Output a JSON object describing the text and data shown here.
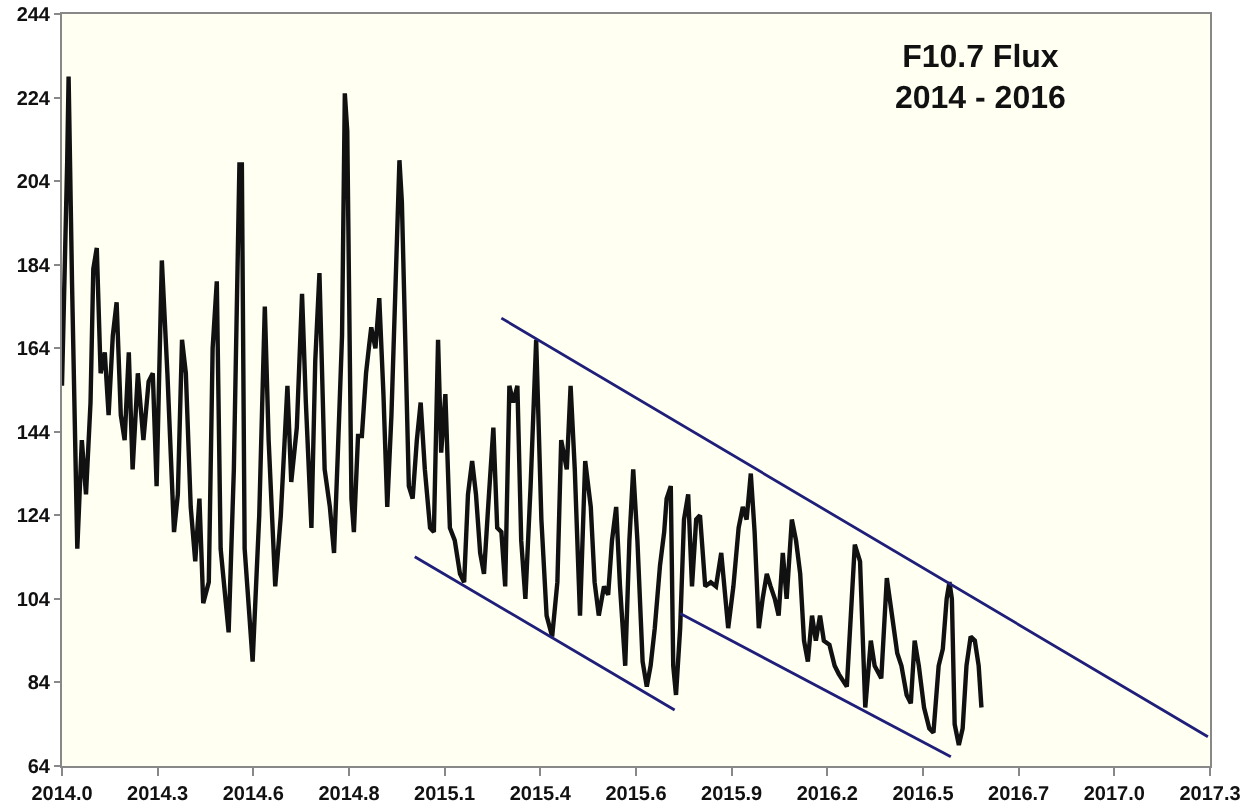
{
  "chart_data": {
    "type": "line",
    "title": "F10.7 Flux\n2014 - 2016",
    "xlim": [
      2014,
      2017.3
    ],
    "xticks": [
      {
        "value": 2014,
        "label": "2014.0"
      },
      {
        "value": 2014.275,
        "label": "2014.3"
      },
      {
        "value": 2014.55,
        "label": "2014.6"
      },
      {
        "value": 2014.825,
        "label": "2014.8"
      },
      {
        "value": 2015.1,
        "label": "2015.1"
      },
      {
        "value": 2015.375,
        "label": "2015.4"
      },
      {
        "value": 2015.65,
        "label": "2015.6"
      },
      {
        "value": 2015.925,
        "label": "2015.9"
      },
      {
        "value": 2016.2,
        "label": "2016.2"
      },
      {
        "value": 2016.475,
        "label": "2016.5"
      },
      {
        "value": 2016.75,
        "label": "2016.7"
      },
      {
        "value": 2017.025,
        "label": "2017.0"
      },
      {
        "value": 2017.3,
        "label": "2017.3"
      }
    ],
    "ylim": [
      64,
      244
    ],
    "yticks": [
      64,
      84,
      104,
      124,
      144,
      164,
      184,
      204,
      224,
      244
    ],
    "grid": false,
    "series": [
      {
        "color": "#111111",
        "x": [
          2014.0,
          2014.015,
          2014.019,
          2014.029,
          2014.044,
          2014.057,
          2014.069,
          2014.082,
          2014.09,
          2014.1,
          2014.111,
          2014.123,
          2014.134,
          2014.146,
          2014.157,
          2014.169,
          2014.18,
          2014.192,
          2014.203,
          2014.218,
          2014.234,
          2014.249,
          2014.261,
          2014.272,
          2014.287,
          2014.303,
          2014.322,
          2014.333,
          2014.345,
          2014.356,
          2014.37,
          2014.383,
          2014.395,
          2014.406,
          2014.422,
          2014.433,
          2014.445,
          2014.456,
          2014.479,
          2014.494,
          2014.51,
          2014.517,
          2014.525,
          2014.548,
          2014.567,
          2014.583,
          2014.594,
          2014.613,
          2014.629,
          2014.648,
          2014.659,
          2014.675,
          2014.69,
          2014.701,
          2014.717,
          2014.728,
          2014.74,
          2014.755,
          2014.77,
          2014.782,
          2014.793,
          2014.805,
          2014.813,
          2014.82,
          2014.832,
          2014.839,
          2014.851,
          2014.862,
          2014.874,
          2014.882,
          2014.889,
          2014.901,
          2014.912,
          2014.924,
          2014.935,
          2014.947,
          2014.958,
          2014.97,
          2014.977,
          2014.997,
          2015.008,
          2015.02,
          2015.031,
          2015.043,
          2015.058,
          2015.069,
          2015.081,
          2015.09,
          2015.102,
          2015.115,
          2015.129,
          2015.144,
          2015.156,
          2015.167,
          2015.179,
          2015.19,
          2015.202,
          2015.213,
          2015.225,
          2015.24,
          2015.251,
          2015.263,
          2015.274,
          2015.286,
          2015.297,
          2015.309,
          2015.32,
          2015.332,
          2015.347,
          2015.363,
          2015.378,
          2015.393,
          2015.409,
          2015.424,
          2015.435,
          2015.451,
          2015.462,
          2015.474,
          2015.489,
          2015.504,
          2015.52,
          2015.531,
          2015.543,
          2015.558,
          2015.57,
          2015.581,
          2015.593,
          2015.604,
          2015.619,
          2015.631,
          2015.642,
          2015.654,
          2015.669,
          2015.681,
          2015.692,
          2015.704,
          2015.719,
          2015.731,
          2015.738,
          2015.75,
          2015.757,
          2015.765,
          2015.777,
          2015.788,
          2015.8,
          2015.811,
          2015.823,
          2015.834,
          2015.849,
          2015.865,
          2015.88,
          2015.895,
          2015.915,
          2015.93,
          2015.945,
          2015.957,
          2015.968,
          2015.98,
          2015.991,
          2016.003,
          2016.014,
          2016.026,
          2016.037,
          2016.049,
          2016.06,
          2016.072,
          2016.083,
          2016.098,
          2016.11,
          2016.122,
          2016.133,
          2016.144,
          2016.156,
          2016.167,
          2016.179,
          2016.19,
          2016.206,
          2016.221,
          2016.233,
          2016.256,
          2016.279,
          2016.294,
          2016.309,
          2016.325,
          2016.336,
          2016.355,
          2016.371,
          2016.386,
          2016.401,
          2016.413,
          2016.428,
          2016.44,
          2016.451,
          2016.463,
          2016.478,
          2016.493,
          2016.505,
          2016.52,
          2016.532,
          2016.543,
          2016.551,
          2016.558,
          2016.566,
          2016.578,
          2016.589,
          2016.6,
          2016.612,
          2016.624,
          2016.635,
          2016.643
        ],
        "values": [
          155,
          209,
          229,
          179,
          116,
          142,
          129,
          151,
          183,
          188,
          158,
          163,
          148,
          167,
          175,
          148,
          142,
          163,
          135,
          158,
          142,
          156,
          158,
          131,
          185,
          158,
          120,
          129,
          166,
          158,
          126,
          113,
          128,
          103,
          108,
          164,
          180,
          116,
          96,
          135,
          208,
          208,
          116,
          89,
          124,
          174,
          142,
          107,
          124,
          155,
          132,
          145,
          177,
          151,
          121,
          161,
          182,
          135,
          126,
          115,
          139,
          167,
          225,
          216,
          128,
          120,
          143,
          143,
          158,
          164,
          169,
          164,
          176,
          153,
          126,
          148,
          177,
          209,
          199,
          131,
          128,
          142,
          151,
          135,
          121,
          120,
          166,
          139,
          153,
          121,
          118,
          110,
          108,
          129,
          137,
          129,
          115,
          110,
          126,
          145,
          121,
          120,
          107,
          155,
          151,
          155,
          118,
          104,
          131,
          166,
          123,
          100,
          95,
          108,
          142,
          135,
          155,
          135,
          100,
          137,
          126,
          108,
          100,
          107,
          105,
          118,
          126,
          107,
          88,
          118,
          135,
          118,
          89,
          83,
          88,
          97,
          112,
          120,
          128,
          131,
          88,
          81,
          97,
          123,
          129,
          107,
          123,
          124,
          107,
          108,
          107,
          115,
          97,
          107,
          121,
          126,
          123,
          134,
          120,
          97,
          104,
          110,
          107,
          104,
          100,
          115,
          104,
          123,
          118,
          110,
          94,
          89,
          100,
          94,
          100,
          94,
          93,
          88,
          86,
          83,
          117,
          113,
          78,
          94,
          88,
          85,
          109,
          100,
          91,
          88,
          81,
          79,
          94,
          88,
          78,
          73,
          72,
          88,
          92,
          104,
          108,
          104,
          74,
          69,
          73,
          88,
          95,
          94,
          88,
          78
        ]
      },
      {
        "color": "#1f1f7a",
        "x": [
          2015.263,
          2017.294
        ],
        "values": [
          171.2,
          71.0
        ]
      },
      {
        "color": "#1f1f7a",
        "x": [
          2015.014,
          2015.761
        ],
        "values": [
          114.1,
          77.4
        ]
      },
      {
        "color": "#1f1f7a",
        "x": [
          2015.777,
          2016.555
        ],
        "values": [
          100.5,
          66.2
        ]
      }
    ]
  }
}
